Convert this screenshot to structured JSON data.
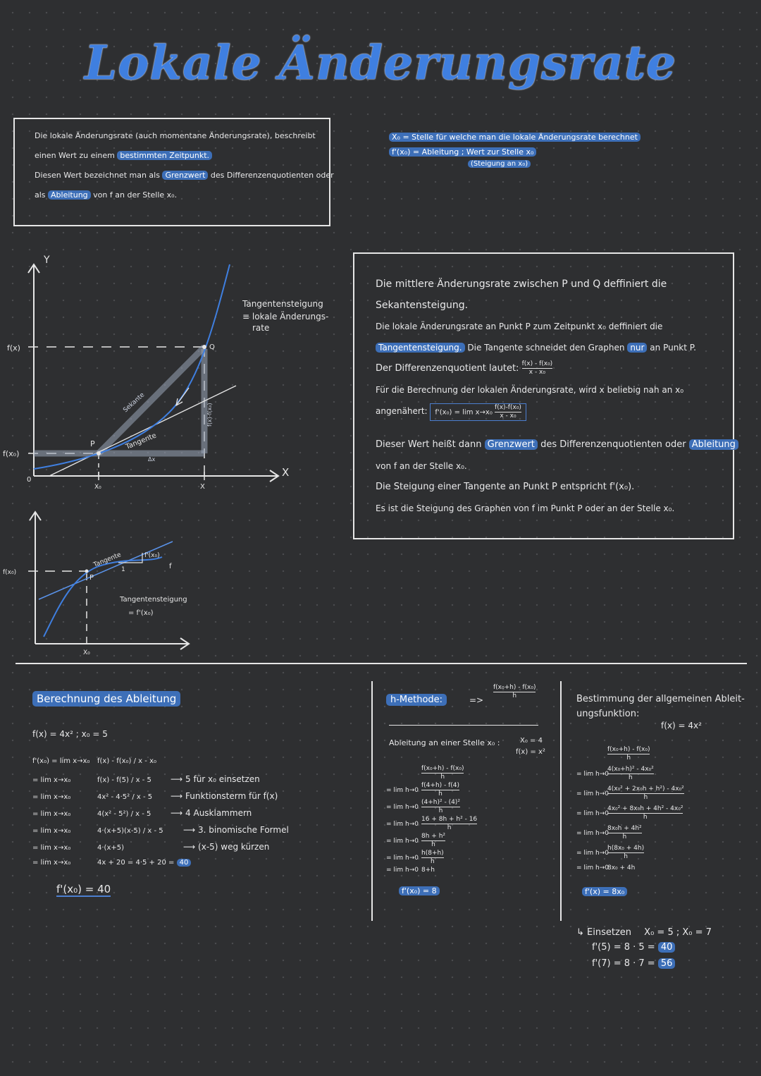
{
  "title": "Lokale Änderungsrate",
  "intro_box": {
    "line1": "Die lokale Änderungsrate (auch momentane Änderungsrate), beschreibt",
    "line2a": "einen Wert zu einem",
    "line2b": "bestimmten Zeitpunkt.",
    "line3a": "Diesen Wert bezeichnet man als",
    "line3b": "Grenzwert",
    "line3c": "des Differenzenquotienten oder",
    "line4a": "als",
    "line4b": "Ableitung",
    "line4c": "von f an der Stelle x₀."
  },
  "notes_top_right": {
    "line1": "X₀ = Stelle für welche man die lokale Änderungsrate berechnet",
    "line2": "f'(x₀) = Ableitung ; Wert zur Stelle x₀",
    "line3": "(Steigung an x₀)"
  },
  "graph1": {
    "y_axis": "Y",
    "x_axis": "X",
    "fx": "f(x)",
    "fx0": "f(x₀)",
    "origin": "0",
    "x0": "X₀",
    "x": "X",
    "P": "P",
    "Q": "Q",
    "tangente": "Tangente",
    "sekante": "Sekante",
    "delta_x": "Δx",
    "delta_y": "f(x)-f(x₀)",
    "tangent_note1": "Tangentensteigung",
    "tangent_note2": "≡ lokale Änderungs-",
    "tangent_note3": "rate"
  },
  "graph2": {
    "fx0": "f(x₀)",
    "x0": "X₀",
    "P": "P",
    "tangente": "Tangente",
    "one": "1",
    "fprime": "f'(x₀)",
    "f": "f",
    "note1": "Tangentensteigung",
    "note2": "= f'(x₀)"
  },
  "right_box": {
    "l1": "Die mittlere Änderungsrate zwischen P und Q deffiniert die",
    "l2": "Sekantensteigung.",
    "l3": "Die lokale Änderungsrate an Punkt P zum Zeitpunkt x₀ deffiniert die",
    "l4a": "Tangentensteigung.",
    "l4b": "Die Tangente schneidet den Graphen",
    "l4c": "nur",
    "l4d": "an Punkt P.",
    "l5": "Der Differenzenquotient lautet:",
    "l5_num": "f(x) - f(x₀)",
    "l5_den": "x - x₀",
    "l6": "Für die Berechnung der lokalen Änderungsrate, wird x beliebig nah an x₀",
    "l7a": "angenähert:",
    "l7_formula": "f'(x₀) = lim x→x₀",
    "l7_num": "f(x)-f(x₀)",
    "l7_den": "x - x₀",
    "l8a": "Dieser Wert heißt dann",
    "l8b": "Grenzwert",
    "l8c": "des Differenzenquotienten oder",
    "l8d": "Ableitung",
    "l9": "von f an der Stelle x₀.",
    "l10": "Die Steigung einer Tangente an Punkt P entspricht f'(x₀).",
    "l11": "Es ist die Steigung des Graphen von f im Punkt P oder an der Stelle x₀."
  },
  "calc1": {
    "heading": "Berechnung des Ableitung",
    "func": "f(x) = 4x²  ;  x₀ = 5",
    "rows": [
      {
        "lhs": "f'(x₀) = lim x→x₀",
        "expr": "f(x) - f(x₀) / x - x₀",
        "note": ""
      },
      {
        "lhs": "= lim x→x₀",
        "expr": "f(x) - f(5) / x - 5",
        "note": "5 für x₀ einsetzen"
      },
      {
        "lhs": "= lim x→x₀",
        "expr": "4x² - 4·5² / x - 5",
        "note": "Funktionsterm für f(x)"
      },
      {
        "lhs": "= lim x→x₀",
        "expr": "4(x² - 5²) / x - 5",
        "note": "4 Ausklammern"
      },
      {
        "lhs": "= lim x→x₀",
        "expr": "4·(x+5)(x-5) / x - 5",
        "note": "3. binomische Formel"
      },
      {
        "lhs": "= lim x→x₀",
        "expr": "4·(x+5)",
        "note": "(x-5) weg kürzen"
      },
      {
        "lhs": "= lim x→x₀",
        "expr": "4x + 20 = 4·5 + 20 =",
        "note": ""
      }
    ],
    "final_value": "40",
    "result": "f'(x₀) = 40"
  },
  "calc2": {
    "heading": "h-Methode:",
    "arrow": "=>",
    "formula_num": "f(x₀+h) - f(x₀)",
    "formula_den": "h",
    "sub": "Ableitung an einer Stelle x₀ :",
    "given1": "X₀ = 4",
    "given2": "f(x) = x²",
    "rows": [
      {
        "lhs": "",
        "num": "f(x₀+h) - f(x₀)",
        "den": "h"
      },
      {
        "lhs": "= lim h→0",
        "num": "f(4+h) - f(4)",
        "den": "h"
      },
      {
        "lhs": "= lim h→0",
        "num": "(4+h)² - (4)²",
        "den": "h"
      },
      {
        "lhs": "= lim h→0",
        "num": "16 + 8h + h² - 16",
        "den": "h"
      },
      {
        "lhs": "= lim h→0",
        "num": "8h + h²",
        "den": "h"
      },
      {
        "lhs": "= lim h→0",
        "num": "h(8+h)",
        "den": "h"
      },
      {
        "lhs": "= lim h→0",
        "num": "8+h",
        "den": ""
      }
    ],
    "result": "f'(x₀) = 8"
  },
  "calc3": {
    "heading1": "Bestimmung der allgemeinen Ableit-",
    "heading2": "ungsfunktion:",
    "func": "f(x) = 4x²",
    "rows": [
      {
        "lhs": "",
        "num": "f(x₀+h) - f(x₀)",
        "den": "h"
      },
      {
        "lhs": "= lim h→0",
        "num": "4(x₀+h)² - 4x₀²",
        "den": "h"
      },
      {
        "lhs": "= lim h→0",
        "num": "4(x₀² + 2x₀h + h²) - 4x₀²",
        "den": "h"
      },
      {
        "lhs": "= lim h→0",
        "num": "4x₀² + 8x₀h + 4h² - 4x₀²",
        "den": "h"
      },
      {
        "lhs": "= lim h→0",
        "num": "8x₀h + 4h²",
        "den": "h"
      },
      {
        "lhs": "= lim h→0",
        "num": "h(8x₀ + 4h)",
        "den": "h"
      },
      {
        "lhs": "= lim h→0",
        "num": "8x₀ + 4h",
        "den": ""
      }
    ],
    "result": "f'(x) = 8x₀",
    "insert": "↳ Einsetzen",
    "insert_vals": "X₀ = 5 ; X₀ = 7",
    "ex1": "f'(5) = 8 · 5 =",
    "ex1_val": "40",
    "ex2": "f'(7) = 8 · 7 =",
    "ex2_val": "56"
  }
}
